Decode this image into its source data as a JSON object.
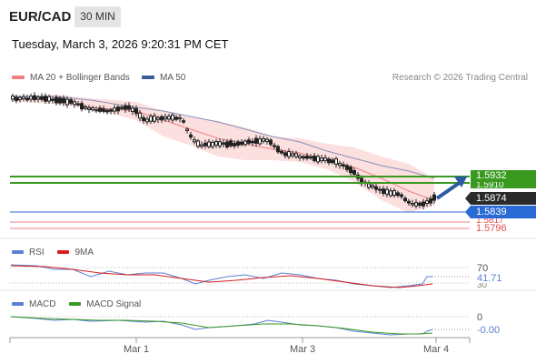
{
  "header": {
    "pair": "EUR/CAD",
    "timeframe": "30 MIN",
    "datetime": "Tuesday, March 3, 2026 9:20:31 PM CET"
  },
  "legend": [
    {
      "label": "MA 20 + Bollinger Bands",
      "color": "#f08080"
    },
    {
      "label": "MA 50",
      "color": "#3c5a9a"
    }
  ],
  "copyright": "Research © 2026 Trading Central",
  "price_tags": {
    "resistance": "1.5932",
    "resistance_hidden": "1.5910",
    "current": "1.5874",
    "support": "1.5839",
    "support_hidden": "1.5817",
    "lower": "1.5796"
  },
  "rsi": {
    "label": "RSI",
    "ma_label": "9MA",
    "level": "70",
    "value": "41.71",
    "lower_level": "30",
    "rsi_color": "#5b7fd4",
    "ma_color": "#d81e1e"
  },
  "macd": {
    "label": "MACD",
    "signal_label": "MACD Signal",
    "level": "0",
    "value": "-0.00",
    "macd_color": "#5b7fd4",
    "signal_color": "#3a9a20"
  },
  "x_axis": [
    "Mar 1",
    "Mar 3",
    "Mar 4"
  ]
}
